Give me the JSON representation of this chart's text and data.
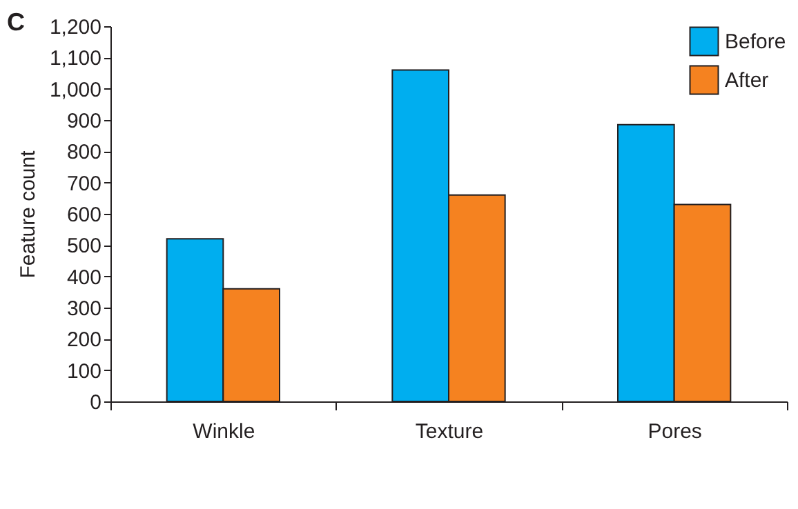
{
  "chart_data": {
    "type": "bar",
    "title": "C",
    "ylabel": "Feature count",
    "categories": [
      "Winkle",
      "Texture",
      "Pores"
    ],
    "series": [
      {
        "name": "Before",
        "color": "#00aeef",
        "values": [
          520,
          1060,
          885
        ]
      },
      {
        "name": "After",
        "color": "#f58220",
        "values": [
          360,
          660,
          630
        ]
      }
    ],
    "ylim": [
      0,
      1200
    ],
    "yticks": [
      0,
      100,
      200,
      300,
      400,
      500,
      600,
      700,
      800,
      900,
      {
        "value": 1000,
        "label": "1,000"
      },
      {
        "value": 1100,
        "label": "1,100"
      },
      {
        "value": 1200,
        "label": "1,200"
      }
    ],
    "grid": false,
    "legend": "top right"
  }
}
